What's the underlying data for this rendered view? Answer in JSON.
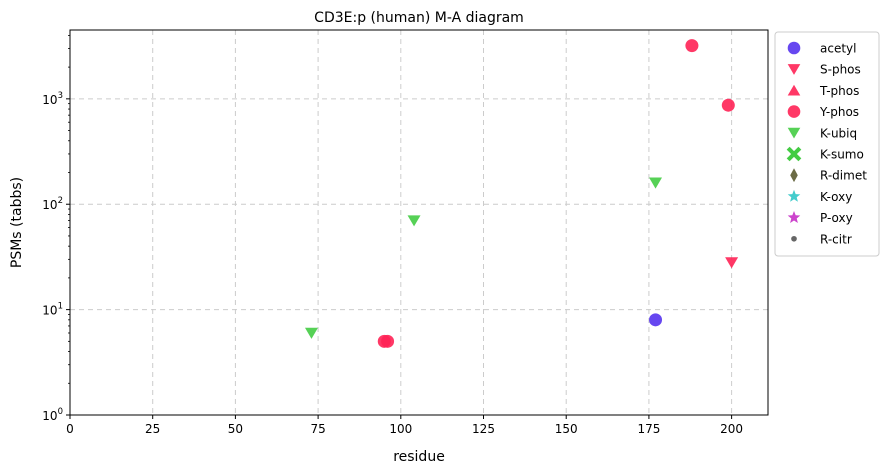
{
  "chart_data": {
    "type": "scatter",
    "title": "CD3E:p (human) M-A diagram",
    "xlabel": "residue",
    "ylabel": "PSMs (tabbs)",
    "xlim": [
      0,
      211
    ],
    "ylim": [
      1,
      4500
    ],
    "y_scale": "log",
    "grid": true,
    "legend_position": "outside-right",
    "x_ticks": [
      "0",
      "25",
      "50",
      "75",
      "100",
      "125",
      "150",
      "175",
      "200"
    ],
    "x_tick_values": [
      0,
      25,
      50,
      75,
      100,
      125,
      150,
      175,
      200
    ],
    "y_ticks": [
      {
        "value": 1,
        "base": "10",
        "exp": "0"
      },
      {
        "value": 10,
        "base": "10",
        "exp": "1"
      },
      {
        "value": 100,
        "base": "10",
        "exp": "2"
      },
      {
        "value": 1000,
        "base": "10",
        "exp": "3"
      }
    ],
    "series": [
      {
        "name": "acetyl",
        "marker": "circle",
        "color": "#5533ee",
        "points": [
          {
            "x": 177,
            "y": 8
          }
        ]
      },
      {
        "name": "S-phos",
        "marker": "triangle-down",
        "color": "#ff2255",
        "points": [
          {
            "x": 200,
            "y": 28
          }
        ]
      },
      {
        "name": "T-phos",
        "marker": "triangle-up",
        "color": "#ff2255",
        "points": []
      },
      {
        "name": "Y-phos",
        "marker": "circle",
        "color": "#ff2255",
        "points": [
          {
            "x": 95,
            "y": 5
          },
          {
            "x": 96,
            "y": 5
          },
          {
            "x": 188,
            "y": 3200
          },
          {
            "x": 199,
            "y": 870
          }
        ]
      },
      {
        "name": "K-ubiq",
        "marker": "triangle-down",
        "color": "#44cc44",
        "points": [
          {
            "x": 73,
            "y": 6
          },
          {
            "x": 104,
            "y": 70
          },
          {
            "x": 177,
            "y": 160
          }
        ]
      },
      {
        "name": "K-sumo",
        "marker": "x",
        "color": "#44cc44",
        "points": []
      },
      {
        "name": "R-dimet",
        "marker": "diamond",
        "color": "#6b6b45",
        "points": []
      },
      {
        "name": "K-oxy",
        "marker": "star",
        "color": "#44cccc",
        "points": []
      },
      {
        "name": "P-oxy",
        "marker": "star",
        "color": "#cc44cc",
        "points": []
      },
      {
        "name": "R-citr",
        "marker": "dot",
        "color": "#666666",
        "points": []
      }
    ]
  }
}
